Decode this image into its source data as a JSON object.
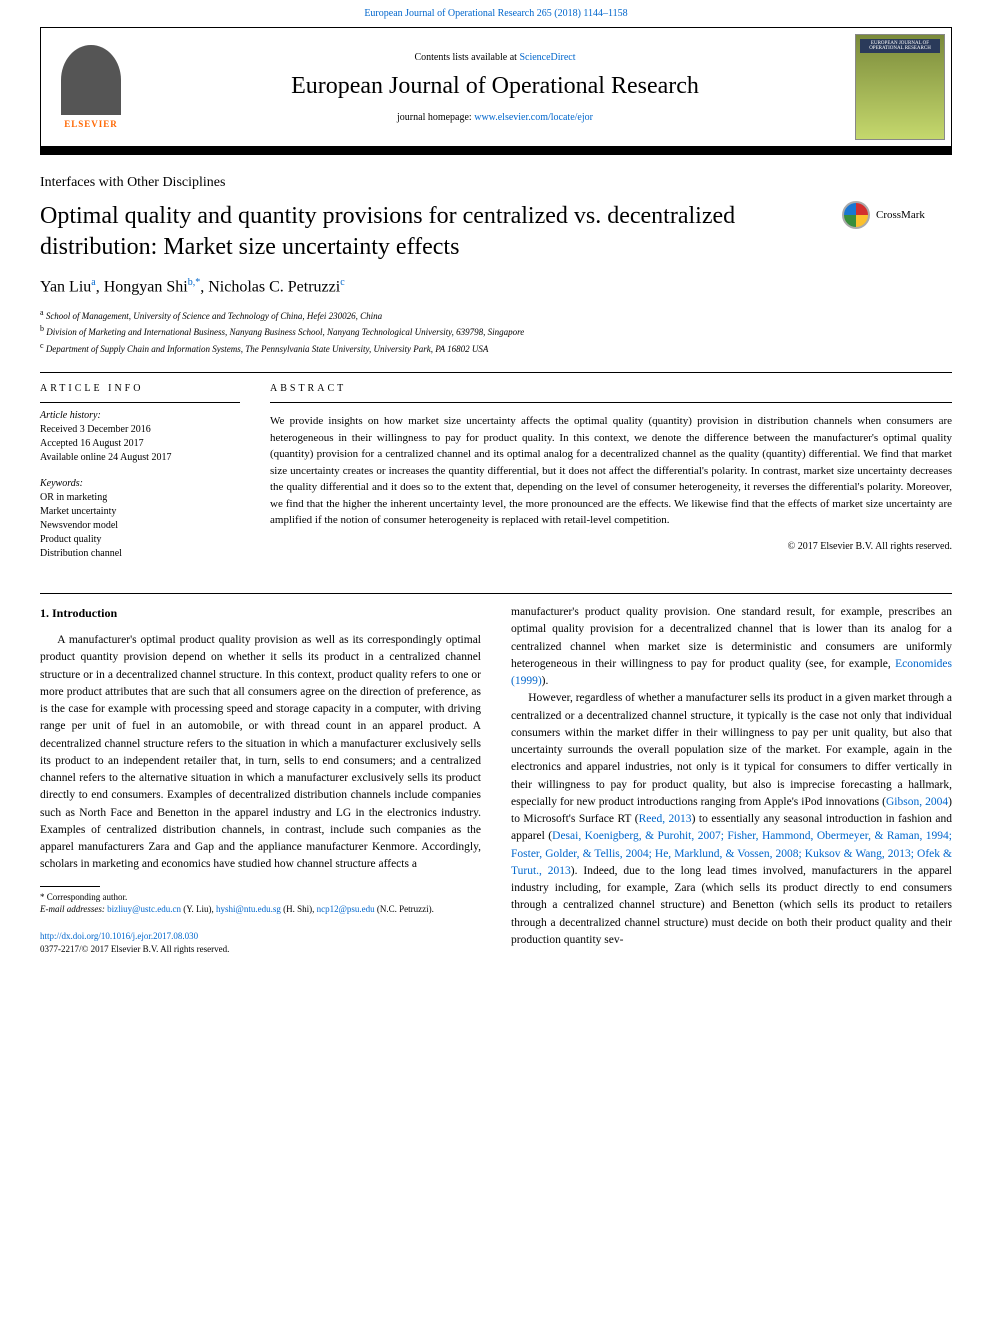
{
  "top_link": "European Journal of Operational Research 265 (2018) 1144–1158",
  "header": {
    "contents_prefix": "Contents lists available at ",
    "contents_link": "ScienceDirect",
    "journal_name": "European Journal of Operational Research",
    "homepage_prefix": "journal homepage: ",
    "homepage_url": "www.elsevier.com/locate/ejor",
    "elsevier_label": "ELSEVIER",
    "cover_label": "EUROPEAN JOURNAL OF OPERATIONAL RESEARCH"
  },
  "section_label": "Interfaces with Other Disciplines",
  "title": "Optimal quality and quantity provisions for centralized vs. decentralized distribution: Market size uncertainty effects",
  "crossmark_label": "CrossMark",
  "authors_html": "Yan Liu<sup>a</sup>, Hongyan Shi<sup>b,*</sup>, Nicholas C. Petruzzi<sup>c</sup>",
  "affiliations": [
    {
      "sup": "a",
      "text": "School of Management, University of Science and Technology of China, Hefei 230026, China"
    },
    {
      "sup": "b",
      "text": "Division of Marketing and International Business, Nanyang Business School, Nanyang Technological University, 639798, Singapore"
    },
    {
      "sup": "c",
      "text": "Department of Supply Chain and Information Systems, The Pennsylvania State University, University Park, PA 16802 USA"
    }
  ],
  "article_info": {
    "heading": "ARTICLE INFO",
    "history_label": "Article history:",
    "history": [
      "Received 3 December 2016",
      "Accepted 16 August 2017",
      "Available online 24 August 2017"
    ],
    "keywords_label": "Keywords:",
    "keywords": [
      "OR in marketing",
      "Market uncertainty",
      "Newsvendor model",
      "Product quality",
      "Distribution channel"
    ]
  },
  "abstract": {
    "heading": "ABSTRACT",
    "text": "We provide insights on how market size uncertainty affects the optimal quality (quantity) provision in distribution channels when consumers are heterogeneous in their willingness to pay for product quality. In this context, we denote the difference between the manufacturer's optimal quality (quantity) provision for a centralized channel and its optimal analog for a decentralized channel as the quality (quantity) differential. We find that market size uncertainty creates or increases the quantity differential, but it does not affect the differential's polarity. In contrast, market size uncertainty decreases the quality differential and it does so to the extent that, depending on the level of consumer heterogeneity, it reverses the differential's polarity. Moreover, we find that the higher the inherent uncertainty level, the more pronounced are the effects. We likewise find that the effects of market size uncertainty are amplified if the notion of consumer heterogeneity is replaced with retail-level competition.",
    "copyright": "© 2017 Elsevier B.V. All rights reserved."
  },
  "body": {
    "heading": "1. Introduction",
    "para1": "A manufacturer's optimal product quality provision as well as its correspondingly optimal product quantity provision depend on whether it sells its product in a centralized channel structure or in a decentralized channel structure. In this context, product quality refers to one or more product attributes that are such that all consumers agree on the direction of preference, as is the case for example with processing speed and storage capacity in a computer, with driving range per unit of fuel in an automobile, or with thread count in an apparel product. A decentralized channel structure refers to the situation in which a manufacturer exclusively sells its product to an independent retailer that, in turn, sells to end consumers; and a centralized channel refers to the alternative situation in which a manufacturer exclusively sells its product directly to end consumers. Examples of decentralized distribution channels include companies such as North Face and Benetton in the apparel industry and LG in the electronics industry. Examples of centralized distribution channels, in contrast, include such companies as the apparel manufacturers Zara and Gap and the appliance manufacturer Kenmore. Accordingly, scholars in marketing and economics have studied how channel structure affects a",
    "para2_pre": "manufacturer's product quality provision. One standard result, for example, prescribes an optimal quality provision for a decentralized channel that is lower than its analog for a centralized channel when market size is deterministic and consumers are uniformly heterogeneous in their willingness to pay for product quality (see, for example, ",
    "para2_cite": "Economides (1999)",
    "para2_post": ").",
    "para3_pre": "However, regardless of whether a manufacturer sells its product in a given market through a centralized or a decentralized channel structure, it typically is the case not only that individual consumers within the market differ in their willingness to pay per unit quality, but also that uncertainty surrounds the overall population size of the market. For example, again in the electronics and apparel industries, not only is it typical for consumers to differ vertically in their willingness to pay for product quality, but also is imprecise forecasting a hallmark, especially for new product introductions ranging from Apple's iPod innovations (",
    "cite_gibson": "Gibson, 2004",
    "para3_mid1": ") to Microsoft's Surface RT (",
    "cite_reed": "Reed, 2013",
    "para3_mid2": ") to essentially any seasonal introduction in fashion and apparel (",
    "cite_multi": "Desai, Koenigberg, & Purohit, 2007; Fisher, Hammond, Obermeyer, & Raman, 1994; Foster, Golder, & Tellis, 2004; He, Marklund, & Vossen, 2008; Kuksov & Wang, 2013; Ofek & Turut., 2013",
    "para3_post": "). Indeed, due to the long lead times involved, manufacturers in the apparel industry including, for example, Zara (which sells its product directly to end consumers through a centralized channel structure) and Benetton (which sells its product to retailers through a decentralized channel structure) must decide on both their product quality and their production quantity sev-"
  },
  "footnotes": {
    "corresponding": "* Corresponding author.",
    "email_label": "E-mail addresses: ",
    "email1": "bizliuy@ustc.edu.cn",
    "email1_who": " (Y. Liu), ",
    "email2": "hyshi@ntu.edu.sg",
    "email2_who": " (H. Shi), ",
    "email3": "ncp12@psu.edu",
    "email3_who": " (N.C. Petruzzi)."
  },
  "doi": {
    "url": "http://dx.doi.org/10.1016/j.ejor.2017.08.030",
    "issn": "0377-2217/© 2017 Elsevier B.V. All rights reserved."
  },
  "colors": {
    "link": "#0066cc",
    "text": "#000000",
    "elsevier_orange": "#ff6600",
    "cover_top": "#7a8a3a",
    "cover_bot": "#c5d86d"
  }
}
